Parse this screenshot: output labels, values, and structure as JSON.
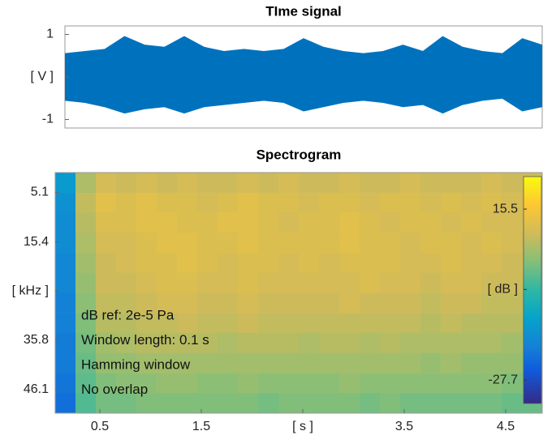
{
  "chart_data": [
    {
      "type": "envelope",
      "title": "TIme signal",
      "x": [
        0,
        0.2,
        0.4,
        0.6,
        0.8,
        1.0,
        1.2,
        1.4,
        1.6,
        1.8,
        2.0,
        2.2,
        2.4,
        2.6,
        2.8,
        3.0,
        3.2,
        3.4,
        3.6,
        3.8,
        4.0,
        4.2,
        4.4,
        4.6,
        4.8
      ],
      "upper": [
        0.55,
        0.6,
        0.65,
        0.95,
        0.75,
        0.7,
        0.95,
        0.7,
        0.6,
        0.65,
        0.6,
        0.65,
        0.9,
        0.7,
        0.6,
        0.55,
        0.6,
        0.75,
        0.6,
        0.95,
        0.7,
        0.6,
        0.55,
        0.9,
        0.75
      ],
      "lower": [
        -0.55,
        -0.6,
        -0.7,
        -0.85,
        -0.75,
        -0.7,
        -0.85,
        -0.7,
        -0.65,
        -0.6,
        -0.55,
        -0.6,
        -0.8,
        -0.7,
        -0.6,
        -0.55,
        -0.6,
        -0.7,
        -0.65,
        -0.85,
        -0.65,
        -0.55,
        -0.5,
        -0.8,
        -0.7
      ],
      "color": "#0072bd",
      "xlim": [
        0,
        4.8
      ],
      "ylim": [
        -1.2,
        1.2
      ],
      "yticks": [
        -1,
        {
          "value": 0,
          "label": "[ V ]"
        },
        1
      ]
    },
    {
      "type": "heatmap",
      "title": "Spectrogram",
      "x": [
        0.16,
        0.36,
        0.56,
        0.76,
        0.96,
        1.16,
        1.36,
        1.56,
        1.76,
        1.96,
        2.16,
        2.36,
        2.56,
        2.76,
        2.96,
        3.16,
        3.36,
        3.56,
        3.76,
        3.96,
        4.16,
        4.36,
        4.56,
        4.76
      ],
      "y": [
        3.1,
        7.3,
        11.4,
        15.6,
        19.8,
        23.9,
        28.1,
        32.3,
        36.4,
        40.6,
        44.8,
        48.9
      ],
      "z": [
        [
          -14,
          6,
          10,
          9,
          10,
          9,
          10,
          9,
          9,
          10,
          9,
          10,
          9,
          9,
          10,
          9,
          9,
          10,
          9,
          9,
          9,
          10,
          9,
          9
        ],
        [
          -16,
          8,
          12,
          11,
          12,
          11,
          11,
          10,
          11,
          12,
          11,
          11,
          10,
          11,
          11,
          10,
          11,
          11,
          10,
          11,
          10,
          11,
          10,
          10
        ],
        [
          -17,
          7,
          11,
          11,
          12,
          12,
          11,
          11,
          12,
          12,
          11,
          10,
          11,
          11,
          12,
          11,
          10,
          11,
          11,
          10,
          11,
          10,
          10,
          10
        ],
        [
          -17,
          6,
          10,
          10,
          11,
          12,
          12,
          11,
          11,
          12,
          11,
          11,
          11,
          11,
          12,
          11,
          11,
          10,
          11,
          11,
          10,
          11,
          10,
          9
        ],
        [
          -18,
          5,
          9,
          10,
          11,
          11,
          12,
          11,
          10,
          11,
          11,
          10,
          11,
          10,
          11,
          11,
          11,
          10,
          10,
          11,
          10,
          10,
          9,
          9
        ],
        [
          -18,
          4,
          9,
          9,
          10,
          11,
          11,
          10,
          10,
          11,
          10,
          10,
          10,
          10,
          10,
          11,
          10,
          10,
          9,
          10,
          10,
          9,
          9,
          8
        ],
        [
          -19,
          3,
          8,
          8,
          9,
          10,
          10,
          9,
          9,
          10,
          9,
          9,
          9,
          9,
          10,
          9,
          9,
          9,
          8,
          9,
          9,
          8,
          8,
          7
        ],
        [
          -19,
          2,
          7,
          7,
          8,
          8,
          9,
          8,
          8,
          9,
          8,
          8,
          8,
          8,
          8,
          8,
          8,
          8,
          7,
          8,
          7,
          7,
          7,
          6
        ],
        [
          -20,
          1,
          5,
          6,
          7,
          7,
          7,
          7,
          6,
          7,
          7,
          7,
          6,
          7,
          7,
          6,
          7,
          6,
          6,
          6,
          6,
          6,
          5,
          5
        ],
        [
          -20,
          0,
          4,
          4,
          5,
          5,
          5,
          5,
          5,
          5,
          5,
          5,
          5,
          5,
          5,
          5,
          5,
          5,
          4,
          5,
          4,
          4,
          4,
          3
        ],
        [
          -21,
          -1,
          2,
          3,
          3,
          4,
          4,
          3,
          3,
          4,
          3,
          3,
          3,
          3,
          4,
          3,
          3,
          3,
          3,
          3,
          3,
          3,
          2,
          2
        ],
        [
          -22,
          -2,
          1,
          1,
          2,
          2,
          2,
          2,
          2,
          2,
          1,
          2,
          2,
          2,
          2,
          1,
          2,
          1,
          1,
          1,
          1,
          1,
          0,
          0
        ]
      ],
      "xlim": [
        0.06,
        4.86
      ],
      "ylim": [
        1,
        51
      ],
      "y_reversed": true,
      "xticks": [
        0.5,
        1.5,
        {
          "value": 2.5,
          "label": "[ s ]"
        },
        3.5,
        4.5
      ],
      "yticks": [
        5.1,
        15.4,
        {
          "value": 25.6,
          "label": "[ kHz ]"
        },
        35.8,
        46.1
      ],
      "clim": [
        -33.6,
        23.7
      ],
      "cticks": [
        -27.7,
        {
          "value": -4.8,
          "label": "[ dB ]"
        },
        15.5
      ],
      "colormap": "parula",
      "annotations": [
        "dB ref: 2e-5 Pa",
        "Window length: 0.1 s",
        "Hamming window",
        "No overlap"
      ]
    }
  ]
}
